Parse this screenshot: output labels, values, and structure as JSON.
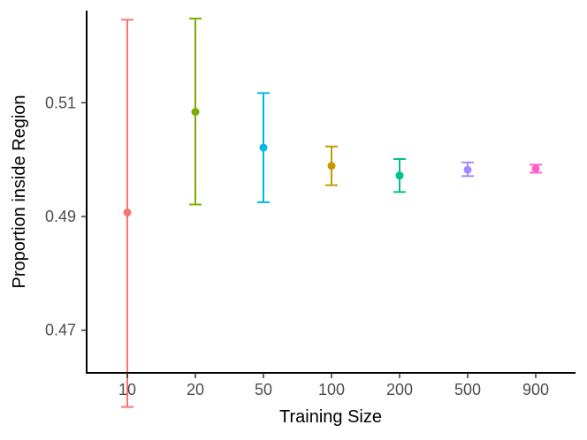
{
  "chart_data": {
    "type": "scatter",
    "subtype": "errorbar",
    "xlabel": "Training Size",
    "ylabel": "Proportion inside Region",
    "categories": [
      "10",
      "20",
      "50",
      "100",
      "200",
      "500",
      "900"
    ],
    "y_ticks": [
      "0.47",
      "0.49",
      "0.51"
    ],
    "ylim": [
      0.4625,
      0.5262
    ],
    "grid": false,
    "legend": "none",
    "points": [
      {
        "x": "10",
        "y": 0.4907,
        "ymin": 0.4565,
        "ymax": 0.5246,
        "color": "#F8766D"
      },
      {
        "x": "20",
        "y": 0.5084,
        "ymin": 0.4921,
        "ymax": 0.5248,
        "color": "#7CAE00"
      },
      {
        "x": "50",
        "y": 0.5021,
        "ymin": 0.4925,
        "ymax": 0.5117,
        "color": "#00B8E7"
      },
      {
        "x": "100",
        "y": 0.4989,
        "ymin": 0.4955,
        "ymax": 0.5023,
        "color": "#C49A00"
      },
      {
        "x": "200",
        "y": 0.4972,
        "ymin": 0.4943,
        "ymax": 0.5001,
        "color": "#00C08B"
      },
      {
        "x": "500",
        "y": 0.4982,
        "ymin": 0.4971,
        "ymax": 0.4995,
        "color": "#A58AFF"
      },
      {
        "x": "900",
        "y": 0.4984,
        "ymin": 0.4977,
        "ymax": 0.4991,
        "color": "#FF61CC"
      }
    ]
  }
}
